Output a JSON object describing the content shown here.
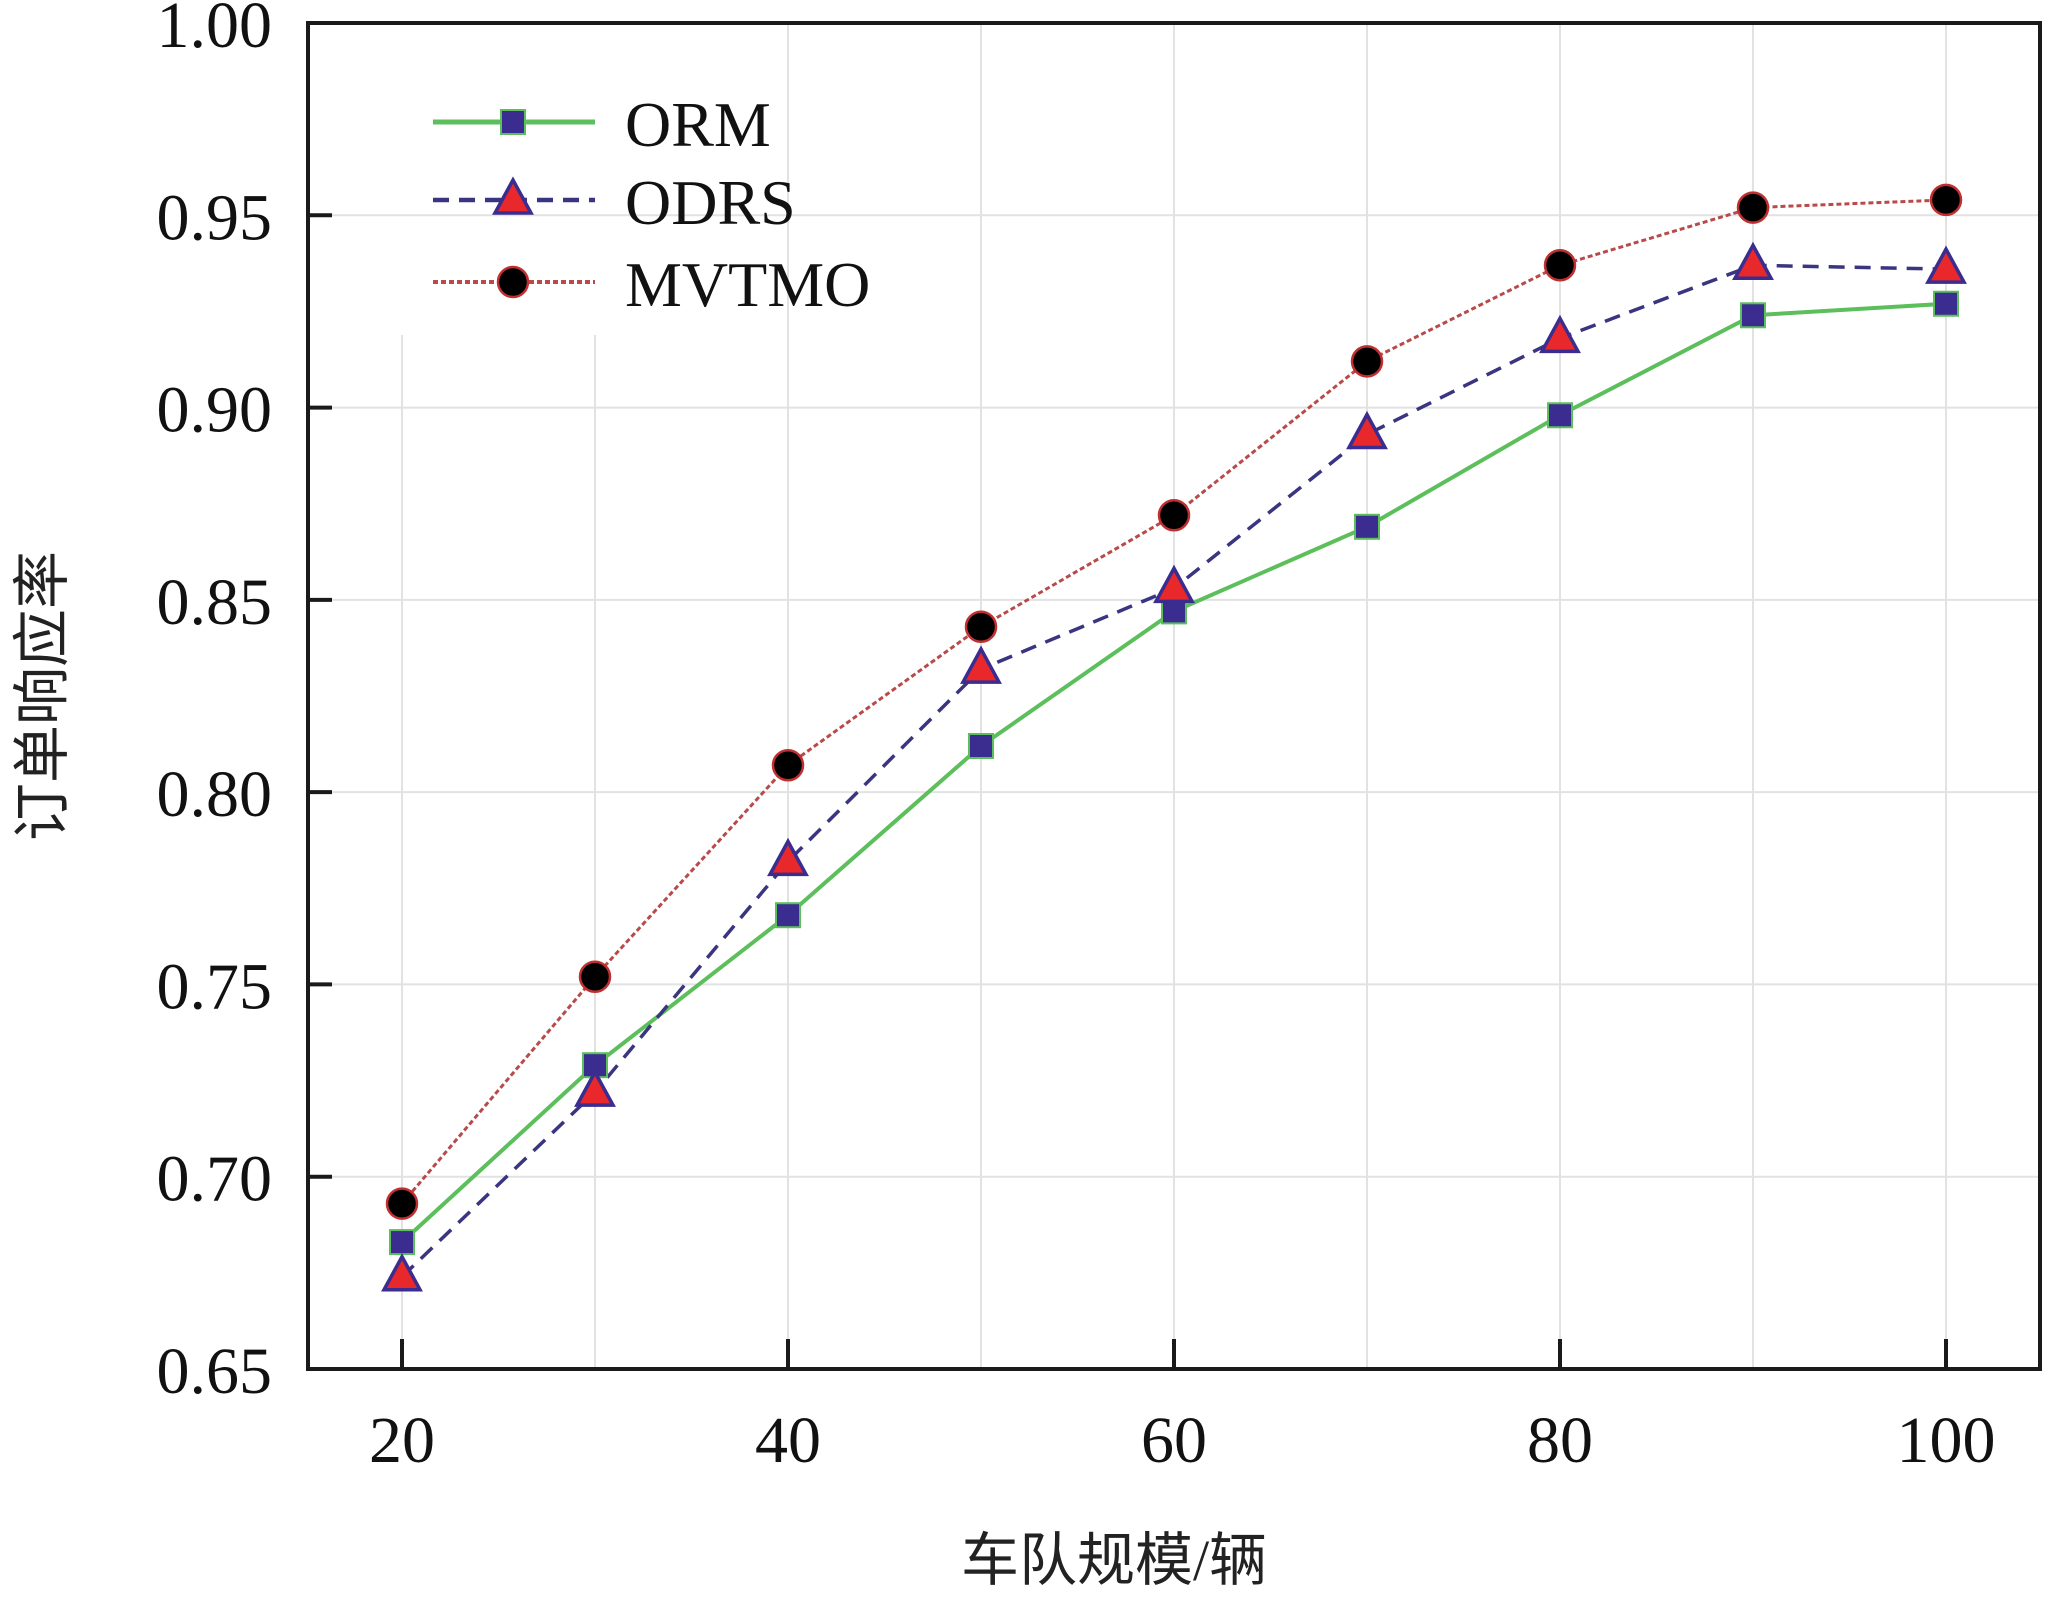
{
  "chart_data": {
    "type": "line",
    "title": "",
    "xlabel": "车队规模/辆",
    "ylabel": "订单响应率",
    "x": [
      20,
      30,
      40,
      50,
      60,
      70,
      80,
      90,
      100
    ],
    "xlim": [
      15,
      105
    ],
    "ylim": [
      0.65,
      1.0
    ],
    "xticks": [
      20,
      40,
      60,
      80,
      100
    ],
    "xtick_labels": [
      "20",
      "40",
      "60",
      "80",
      "100"
    ],
    "yticks": [
      0.65,
      0.7,
      0.75,
      0.8,
      0.85,
      0.9,
      0.95,
      1.0
    ],
    "ytick_labels": [
      "0.65",
      "0.70",
      "0.75",
      "0.80",
      "0.85",
      "0.90",
      "0.95",
      "1.00"
    ],
    "grid": true,
    "legend_position": "top-left",
    "series": [
      {
        "name": "ORM",
        "line_color": "#5cbf5c",
        "marker": "square",
        "marker_fill": "#3a2d8f",
        "dash": "solid",
        "values": [
          0.683,
          0.729,
          0.768,
          0.812,
          0.847,
          0.869,
          0.898,
          0.924,
          0.927
        ]
      },
      {
        "name": "ODRS",
        "line_color": "#3a3580",
        "marker": "triangle",
        "marker_fill": "#e8282a",
        "dash": "dashed",
        "values": [
          0.674,
          0.722,
          0.782,
          0.832,
          0.853,
          0.893,
          0.918,
          0.937,
          0.936
        ]
      },
      {
        "name": "MVTMO",
        "line_color": "#b84a4a",
        "marker": "circle",
        "marker_fill": "#000000",
        "dash": "dotted",
        "values": [
          0.693,
          0.752,
          0.807,
          0.843,
          0.872,
          0.912,
          0.937,
          0.952,
          0.954
        ]
      }
    ]
  }
}
